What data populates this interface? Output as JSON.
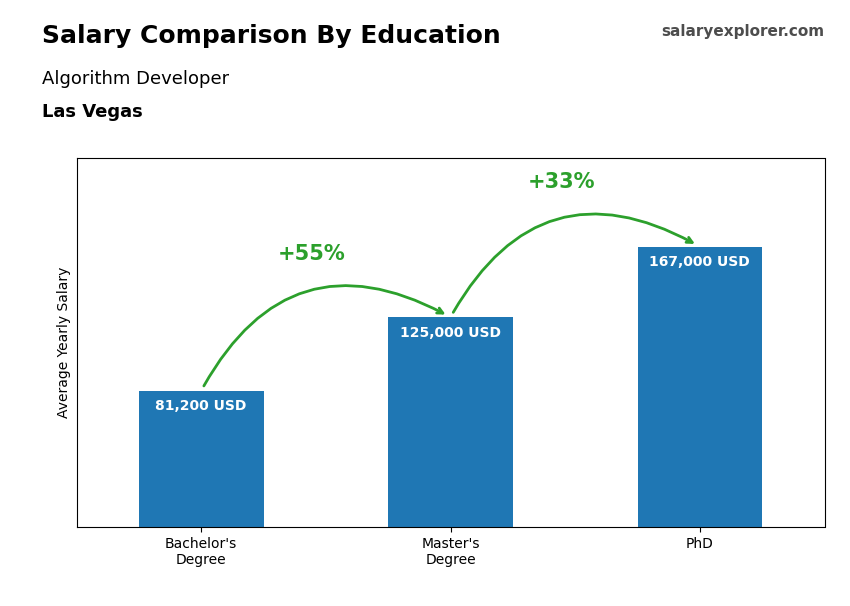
{
  "chart_data": {
    "type": "bar",
    "title": "Salary Comparison By Education",
    "subtitle": [
      "Algorithm Developer",
      "Las Vegas"
    ],
    "ylabel": "Average Yearly Salary",
    "categories": [
      "Bachelor's\nDegree",
      "Master's\nDegree",
      "PhD"
    ],
    "values": [
      81200,
      125000,
      167000
    ],
    "value_labels": [
      "81,200 USD",
      "125,000 USD",
      "167,000 USD"
    ],
    "data_labels": true,
    "ylim": [
      0,
      220000
    ],
    "yticks": [],
    "tick_labels": "x",
    "annotations": [
      {
        "text": "+55%",
        "from": "Bachelor's\nDegree",
        "to": "Master's\nDegree"
      },
      {
        "text": "+33%",
        "from": "Master's\nDegree",
        "to": "PhD"
      },
      {
        "text": "salaryexplorer.com"
      }
    ]
  }
}
